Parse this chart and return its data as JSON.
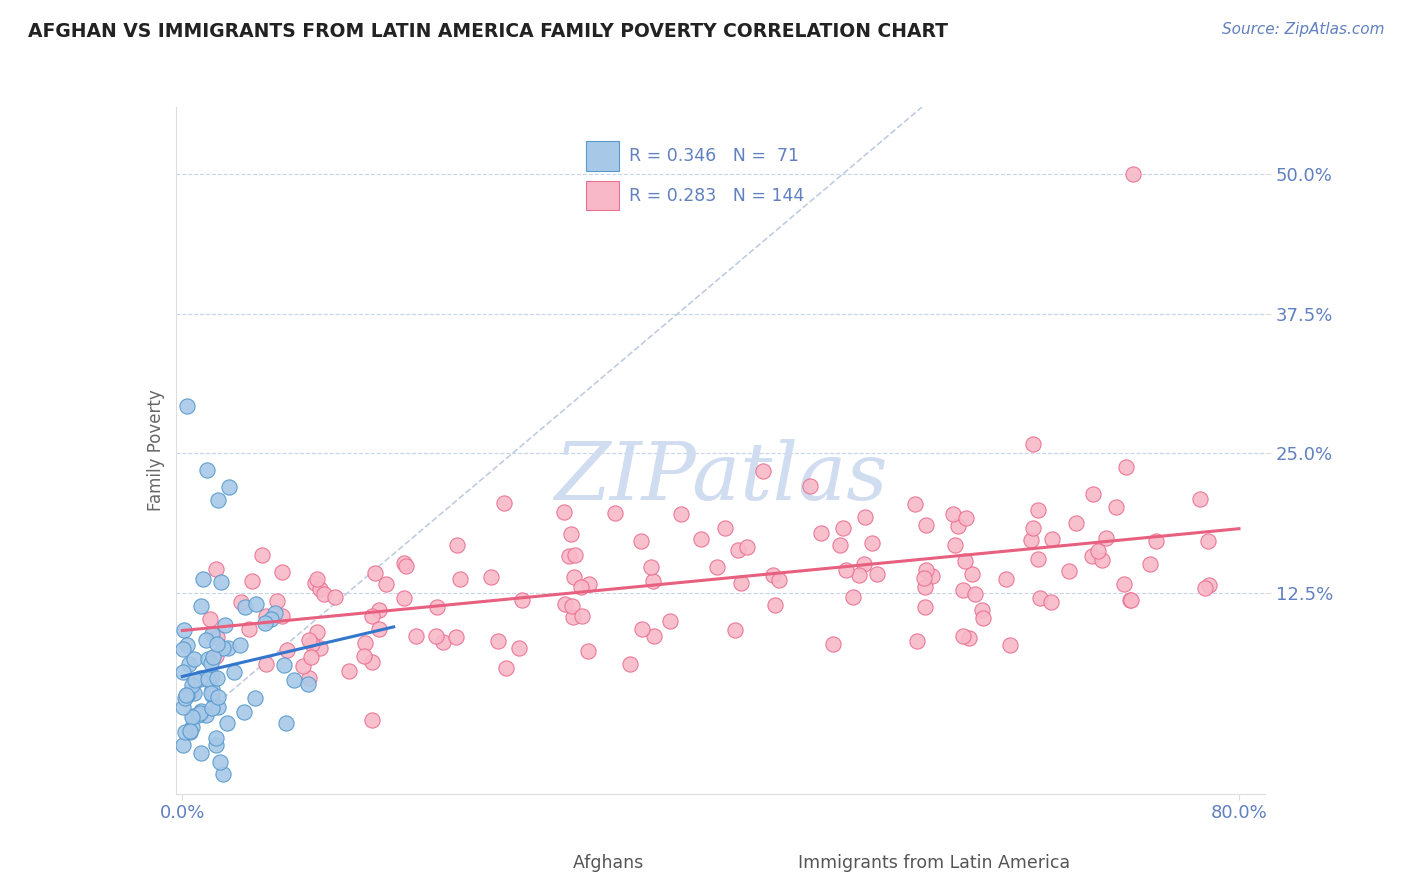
{
  "title": "AFGHAN VS IMMIGRANTS FROM LATIN AMERICA FAMILY POVERTY CORRELATION CHART",
  "source": "Source: ZipAtlas.com",
  "ylabel": "Family Poverty",
  "y_ticks_labels": [
    "50.0%",
    "37.5%",
    "25.0%",
    "12.5%"
  ],
  "y_ticks_values": [
    0.5,
    0.375,
    0.25,
    0.125
  ],
  "xlim": [
    -0.005,
    0.82
  ],
  "ylim": [
    -0.055,
    0.56
  ],
  "afghan_fill_color": "#a8c8e8",
  "afghan_edge_color": "#5599cc",
  "latin_fill_color": "#f8b8c8",
  "latin_edge_color": "#e87090",
  "afghan_line_color": "#3377cc",
  "latin_line_color": "#e86080",
  "diagonal_color": "#c0cce0",
  "watermark_color": "#d0dcf0",
  "legend_R1": "R = 0.346",
  "legend_N1": "N =  71",
  "legend_R2": "R = 0.283",
  "legend_N2": "N = 144",
  "title_color": "#222222",
  "axis_label_color": "#6080c0",
  "grid_color": "#c8d4e8",
  "background_color": "#ffffff"
}
